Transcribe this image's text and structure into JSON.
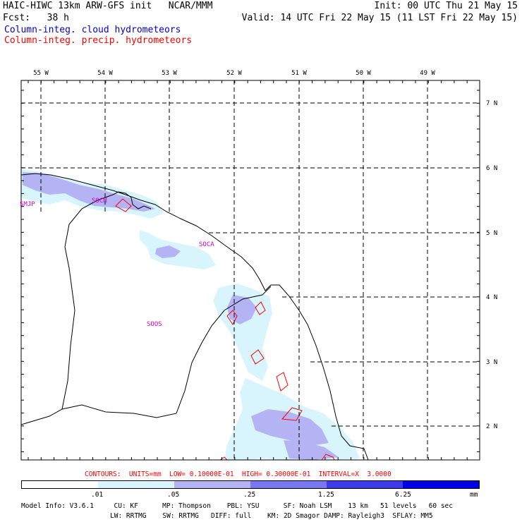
{
  "header": {
    "title": "HAIC-HIWC 13km ARW-GFS init   NCAR/MMM",
    "fcst": "Fcst:   38 h",
    "init": "Init: 00 UTC Thu 21 May 15",
    "valid": "Valid: 14 UTC Fri 22 May 15 (11 LST Fri 22 May 15)",
    "legend_cloud": "Column-integ. cloud hydrometeors",
    "legend_precip": "Column-integ. precip. hydrometeors",
    "legend_cloud_color": "#0000cc",
    "legend_precip_color": "#ff0000"
  },
  "map": {
    "lon_labels": [
      "55 W",
      "54 W",
      "53 W",
      "52 W",
      "51 W",
      "50 W",
      "49 W"
    ],
    "lat_labels": [
      "7 N",
      "6 N",
      "5 N",
      "4 N",
      "3 N",
      "2 N"
    ],
    "stations": [
      "SMJP",
      "SOCM",
      "SOCA",
      "SOOS"
    ]
  },
  "contours_line": "CONTOURS:  UNITS=mm  LOW= 0.10000E-01  HIGH= 0.30000E-01  INTERVAL=X  3.0000",
  "colorbar": {
    "labels": [
      ".01",
      ".05",
      ".25",
      "1.25",
      "6.25",
      "mm"
    ],
    "colors": [
      "#ffffff",
      "#d8f4fc",
      "#b4b4f4",
      "#7878f0",
      "#3c3cec",
      "#0000e4"
    ]
  },
  "footer": {
    "line1": "Model Info: V3.6.1     CU: KF      MP: Thompson    PBL: YSU      SF: Noah LSM    13 km   51 levels   60 sec",
    "line2": "LW: RRTMG    SW: RRTMG   DIFF: full    KM: 2D Smagor DAMP: Rayleigh3  SFLAY: MM5"
  }
}
